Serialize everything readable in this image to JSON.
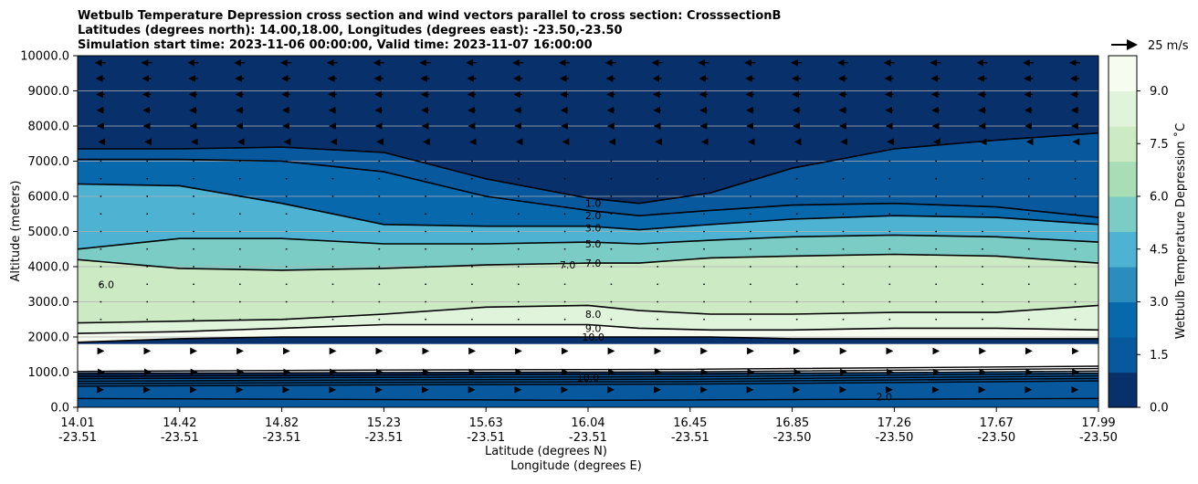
{
  "chart_data": {
    "type": "contour",
    "title_lines": [
      "Wetbulb Temperature Depression cross section and wind vectors parallel to cross section: CrosssectionB",
      "Latitudes (degrees north): 14.00,18.00, Longitudes (degrees east): -23.50,-23.50",
      "Simulation start time: 2023-11-06 00:00:00, Valid time: 2023-11-07 16:00:00"
    ],
    "xlabel": "Latitude (degrees N)",
    "xlabel2": "Longitude (degrees E)",
    "ylabel": "Altitude (meters)",
    "ylim": [
      0,
      10000
    ],
    "y_ticks": [
      "0.0",
      "1000.0",
      "2000.0",
      "3000.0",
      "4000.0",
      "5000.0",
      "6000.0",
      "7000.0",
      "8000.0",
      "9000.0",
      "10000.0"
    ],
    "x_ticks": [
      {
        "lat": "14.01",
        "lon": "-23.51"
      },
      {
        "lat": "14.42",
        "lon": "-23.51"
      },
      {
        "lat": "14.82",
        "lon": "-23.51"
      },
      {
        "lat": "15.23",
        "lon": "-23.51"
      },
      {
        "lat": "15.63",
        "lon": "-23.51"
      },
      {
        "lat": "16.04",
        "lon": "-23.51"
      },
      {
        "lat": "16.45",
        "lon": "-23.51"
      },
      {
        "lat": "16.85",
        "lon": "-23.50"
      },
      {
        "lat": "17.26",
        "lon": "-23.50"
      },
      {
        "lat": "17.67",
        "lon": "-23.50"
      },
      {
        "lat": "17.99",
        "lon": "-23.50"
      }
    ],
    "colorbar": {
      "label": "Wetbulb Temperature Depression ˚C",
      "range": [
        0,
        10
      ],
      "tick_labels": [
        "0.0",
        "1.5",
        "3.0",
        "4.5",
        "6.0",
        "7.5",
        "9.0"
      ],
      "colors": [
        "#08306b",
        "#08589e",
        "#0868ac",
        "#2b8cbe",
        "#4eb3d3",
        "#7bccc4",
        "#a8ddb5",
        "#ccebc5",
        "#e0f3db",
        "#f7fcf0"
      ]
    },
    "quiver_key": {
      "label": "25 m/s",
      "speed": 25
    },
    "contour_labels": [
      "1.0",
      "2.0",
      "3.0",
      "5.0",
      "7.0",
      "8.0",
      "9.0",
      "10.0"
    ],
    "contour_labels_extra": [
      "6.0",
      "7.0",
      "2.0",
      "10.0"
    ],
    "contours": [
      {
        "level": 1,
        "x": [
          0,
          0.1,
          0.2,
          0.3,
          0.4,
          0.5,
          0.55,
          0.62,
          0.7,
          0.8,
          0.9,
          1
        ],
        "y": [
          7350,
          7350,
          7400,
          7250,
          6500,
          5950,
          5800,
          6100,
          6800,
          7350,
          7600,
          7800
        ]
      },
      {
        "level": 2,
        "x": [
          0,
          0.1,
          0.2,
          0.3,
          0.4,
          0.5,
          0.55,
          0.62,
          0.7,
          0.8,
          0.9,
          1
        ],
        "y": [
          7050,
          7050,
          7000,
          6700,
          6000,
          5600,
          5450,
          5600,
          5750,
          5800,
          5700,
          5400
        ]
      },
      {
        "level": 3,
        "x": [
          0,
          0.1,
          0.2,
          0.3,
          0.4,
          0.5,
          0.55,
          0.62,
          0.7,
          0.8,
          0.9,
          1
        ],
        "y": [
          6350,
          6300,
          5800,
          5200,
          5150,
          5150,
          5050,
          5200,
          5350,
          5450,
          5400,
          5200
        ]
      },
      {
        "level": 5,
        "x": [
          0,
          0.1,
          0.2,
          0.3,
          0.4,
          0.5,
          0.55,
          0.62,
          0.7,
          0.8,
          0.9,
          1
        ],
        "y": [
          4500,
          4800,
          4800,
          4650,
          4650,
          4700,
          4650,
          4750,
          4850,
          4900,
          4850,
          4700
        ]
      },
      {
        "level": 7,
        "x": [
          0,
          0.1,
          0.2,
          0.3,
          0.4,
          0.5,
          0.55,
          0.62,
          0.7,
          0.8,
          0.9,
          1
        ],
        "y": [
          4200,
          3950,
          3900,
          3950,
          4050,
          4100,
          4100,
          4250,
          4300,
          4350,
          4300,
          4100
        ]
      },
      {
        "level": 8,
        "x": [
          0,
          0.1,
          0.2,
          0.3,
          0.4,
          0.5,
          0.55,
          0.62,
          0.7,
          0.8,
          0.9,
          1
        ],
        "y": [
          2400,
          2450,
          2500,
          2650,
          2850,
          2900,
          2750,
          2650,
          2650,
          2700,
          2700,
          2900
        ]
      },
      {
        "level": 9,
        "x": [
          0,
          0.1,
          0.2,
          0.3,
          0.4,
          0.5,
          0.55,
          0.62,
          0.7,
          0.8,
          0.9,
          1
        ],
        "y": [
          2100,
          2150,
          2250,
          2350,
          2350,
          2350,
          2250,
          2200,
          2200,
          2250,
          2250,
          2200
        ]
      },
      {
        "level": 10,
        "x": [
          0,
          0.1,
          0.2,
          0.3,
          0.4,
          0.5,
          0.55,
          0.62,
          0.7,
          0.8,
          0.9,
          1
        ],
        "y": [
          1850,
          1950,
          2000,
          2000,
          2000,
          2000,
          2000,
          2000,
          1950,
          1950,
          1950,
          1950
        ]
      }
    ],
    "fill_bands": [
      {
        "value": 0.6,
        "x": [
          0,
          0.1,
          0.2,
          0.3,
          0.4,
          0.5,
          0.55,
          0.62,
          0.7,
          0.8,
          0.9,
          1
        ],
        "y_bottom": [
          7350,
          7350,
          7400,
          7250,
          6500,
          5950,
          5800,
          6100,
          6800,
          7350,
          7600,
          7800
        ],
        "y_top": [
          10000,
          10000,
          10000,
          10000,
          10000,
          10000,
          10000,
          10000,
          10000,
          10000,
          10000,
          10000
        ]
      },
      {
        "value": 1.5,
        "x": [
          0,
          0.1,
          0.2,
          0.3,
          0.4,
          0.5,
          0.55,
          0.62,
          0.7,
          0.8,
          0.9,
          1
        ],
        "y_bottom": [
          7050,
          7050,
          7000,
          6700,
          6000,
          5600,
          5450,
          5600,
          5750,
          5800,
          5700,
          5400
        ],
        "y_top": [
          7350,
          7350,
          7400,
          7250,
          6500,
          5950,
          5800,
          6100,
          6800,
          7350,
          7600,
          7800
        ]
      },
      {
        "value": 2.5,
        "x": [
          0,
          0.1,
          0.2,
          0.3,
          0.4,
          0.5,
          0.55,
          0.62,
          0.7,
          0.8,
          0.9,
          1
        ],
        "y_bottom": [
          6350,
          6300,
          5800,
          5200,
          5150,
          5150,
          5050,
          5200,
          5350,
          5450,
          5400,
          5200
        ],
        "y_top": [
          7050,
          7050,
          7000,
          6700,
          6000,
          5600,
          5450,
          5600,
          5750,
          5800,
          5700,
          5400
        ]
      },
      {
        "value": 4.2,
        "x": [
          0,
          0.1,
          0.2,
          0.3,
          0.4,
          0.5,
          0.55,
          0.62,
          0.7,
          0.8,
          0.9,
          1
        ],
        "y_bottom": [
          4500,
          4800,
          4800,
          4650,
          4650,
          4700,
          4650,
          4750,
          4850,
          4900,
          4850,
          4700
        ],
        "y_top": [
          6350,
          6300,
          5800,
          5200,
          5150,
          5150,
          5050,
          5200,
          5350,
          5450,
          5400,
          5200
        ]
      },
      {
        "value": 5.8,
        "x": [
          0,
          0.1,
          0.2,
          0.3,
          0.4,
          0.5,
          0.55,
          0.62,
          0.7,
          0.8,
          0.9,
          1
        ],
        "y_bottom": [
          4200,
          3950,
          3900,
          3950,
          4050,
          4100,
          4100,
          4250,
          4300,
          4350,
          4300,
          4100
        ],
        "y_top": [
          4500,
          4800,
          4800,
          4650,
          4650,
          4700,
          4650,
          4750,
          4850,
          4900,
          4850,
          4700
        ]
      },
      {
        "value": 7.3,
        "x": [
          0,
          0.1,
          0.2,
          0.3,
          0.4,
          0.5,
          0.55,
          0.62,
          0.7,
          0.8,
          0.9,
          1
        ],
        "y_bottom": [
          2400,
          2450,
          2500,
          2650,
          2850,
          2900,
          2750,
          2650,
          2650,
          2700,
          2700,
          2900
        ],
        "y_top": [
          4200,
          3950,
          3900,
          3950,
          4050,
          4100,
          4100,
          4250,
          4300,
          4350,
          4300,
          4100
        ]
      },
      {
        "value": 8.6,
        "x": [
          0,
          0.1,
          0.2,
          0.3,
          0.4,
          0.5,
          0.55,
          0.62,
          0.7,
          0.8,
          0.9,
          1
        ],
        "y_bottom": [
          2100,
          2150,
          2250,
          2350,
          2350,
          2350,
          2250,
          2200,
          2200,
          2250,
          2250,
          2200
        ],
        "y_top": [
          2400,
          2450,
          2500,
          2650,
          2850,
          2900,
          2750,
          2650,
          2650,
          2700,
          2700,
          2900
        ]
      },
      {
        "value": 9.5,
        "x": [
          0,
          0.1,
          0.2,
          0.3,
          0.4,
          0.5,
          0.55,
          0.62,
          0.7,
          0.8,
          0.9,
          1
        ],
        "y_bottom": [
          1850,
          1950,
          2000,
          2000,
          2000,
          2000,
          2000,
          2000,
          1950,
          1950,
          1950,
          1950
        ],
        "y_top": [
          2100,
          2150,
          2250,
          2350,
          2350,
          2350,
          2250,
          2200,
          2200,
          2250,
          2250,
          2200
        ]
      },
      {
        "value": 1.2,
        "x": [
          0,
          0.2,
          0.4,
          0.6,
          0.8,
          1
        ],
        "y_bottom": [
          0,
          0,
          0,
          0,
          0,
          0
        ],
        "y_top": [
          800,
          850,
          900,
          950,
          1050,
          1150
        ]
      }
    ],
    "blank_layer": {
      "y_bottom": 1000,
      "y_top": 1800
    },
    "wind_levels": [
      {
        "alt": 9800,
        "u": -12
      },
      {
        "alt": 9350,
        "u": -10
      },
      {
        "alt": 8900,
        "u": -9
      },
      {
        "alt": 8450,
        "u": -8
      },
      {
        "alt": 8000,
        "u": -7
      },
      {
        "alt": 7550,
        "u": -4
      },
      {
        "alt": 1600,
        "u": 6
      },
      {
        "alt": 1000,
        "u": 7
      },
      {
        "alt": 500,
        "u": 5
      }
    ],
    "wind_columns": 22
  }
}
